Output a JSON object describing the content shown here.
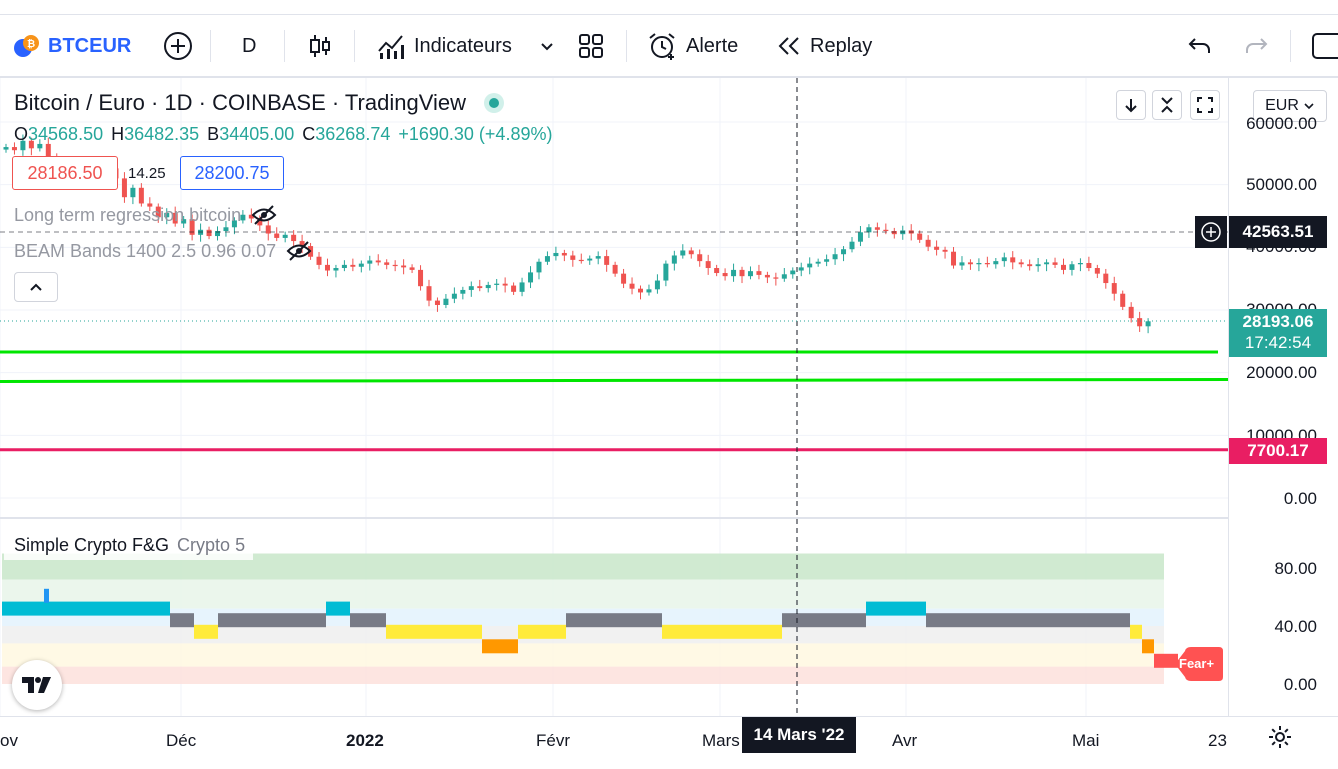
{
  "toolbar": {
    "symbol": "BTCEUR",
    "interval": "D",
    "indicators_label": "Indicateurs",
    "alert_label": "Alerte",
    "replay_label": "Replay"
  },
  "legend": {
    "title": "Bitcoin / Euro · 1D · COINBASE · TradingView",
    "open_label": "O",
    "open": "34568.50",
    "high_label": "H",
    "high": "36482.35",
    "low_label": "B",
    "low": "34405.00",
    "close_label": "C",
    "close": "36268.74",
    "change": "+1690.30 (+4.89%)",
    "sell_price": "28186.50",
    "spread": "14.25",
    "buy_price": "28200.75",
    "indicator_1": "Long term regression bitcoin",
    "indicator_2": "BEAM Bands 1400 2.5 0.96 0.07"
  },
  "currency": "EUR",
  "price_axis": {
    "labels": [
      "60000.00",
      "50000.00",
      "40000.00",
      "30000.00",
      "20000.00",
      "10000.00",
      "0.00"
    ],
    "crosshair_price": "42563.51",
    "last_price": "28193.06",
    "countdown": "17:42:54",
    "low_band_price": "7700.17"
  },
  "sub_pane": {
    "title": "Simple Crypto F&G",
    "params": "Crypto 5",
    "axis_labels": [
      "80.00",
      "40.00",
      "0.00"
    ],
    "badge": "Fear+"
  },
  "time_axis": {
    "labels": [
      "ov",
      "Déc",
      "2022",
      "Févr",
      "Mars",
      "Avr",
      "Mai",
      "23"
    ],
    "crosshair_date": "14 Mars '22"
  },
  "colors": {
    "up": "#26a69a",
    "down": "#ef5350",
    "accent": "#2962ff",
    "band_green": "#00e600",
    "band_red": "#e91e63",
    "fg_blue": "#00bcd4",
    "fg_gray": "#787b86",
    "fg_yellow": "#ffeb3b",
    "fg_orange": "#ff9800",
    "fg_red": "#ff5252"
  },
  "chart_data": {
    "type": "candlestick",
    "title": "Bitcoin / Euro · 1D · COINBASE · TradingView",
    "y_range": [
      0,
      62000
    ],
    "closes": [
      56000,
      55500,
      57000,
      55800,
      56500,
      54500,
      53000,
      50500,
      51500,
      52000,
      50800,
      51200,
      52600,
      51000,
      48000,
      49500,
      47000,
      46500,
      44800,
      45500,
      43800,
      44500,
      42000,
      42800,
      41800,
      42600,
      43200,
      44300,
      45200,
      44600,
      43500,
      42200,
      41500,
      42000,
      41000,
      40200,
      38500,
      37200,
      36300,
      36700,
      37200,
      36900,
      37400,
      37900,
      37600,
      37200,
      37100,
      36800,
      36400,
      33800,
      31500,
      30800,
      31800,
      32600,
      33200,
      33800,
      33500,
      34000,
      34200,
      33900,
      32900,
      34400,
      36000,
      37700,
      38600,
      39100,
      38700,
      38000,
      37900,
      38200,
      38600,
      37200,
      35800,
      34200,
      33400,
      32800,
      33300,
      34700,
      37400,
      38700,
      39500,
      38900,
      37800,
      36700,
      35900,
      35400,
      36400,
      35400,
      36200,
      35600,
      35200,
      35000,
      35700,
      36300,
      36800,
      37400,
      37700,
      38100,
      38900,
      39700,
      40900,
      42400,
      43200,
      42800,
      42600,
      42100,
      42700,
      42200,
      41200,
      40100,
      39600,
      39300,
      37100,
      37600,
      37300,
      37500,
      37300,
      37800,
      38400,
      37600,
      37300,
      37000,
      37300,
      37600,
      37200,
      36400,
      37300,
      37500,
      36700,
      35800,
      34300,
      32600,
      30500,
      28700,
      27400,
      28200
    ],
    "horizontal_bands": [
      {
        "name": "band-upper",
        "value": 23300
      },
      {
        "name": "band-lower",
        "value": 18600
      },
      {
        "name": "band-bottom",
        "value": 7700.17
      }
    ],
    "sub_pane": {
      "type": "step",
      "y_range": [
        0,
        100
      ],
      "zones": [
        90,
        72,
        52,
        40,
        28,
        12,
        0
      ],
      "segments": [
        {
          "start": 0,
          "end": 14,
          "value": 52,
          "color": "#00bcd4"
        },
        {
          "start": 14,
          "end": 16,
          "value": 44,
          "color": "#787b86"
        },
        {
          "start": 16,
          "end": 18,
          "value": 36,
          "color": "#ffeb3b"
        },
        {
          "start": 18,
          "end": 27,
          "value": 44,
          "color": "#787b86"
        },
        {
          "start": 27,
          "end": 29,
          "value": 52,
          "color": "#00bcd4"
        },
        {
          "start": 29,
          "end": 32,
          "value": 44,
          "color": "#787b86"
        },
        {
          "start": 32,
          "end": 40,
          "value": 36,
          "color": "#ffeb3b"
        },
        {
          "start": 40,
          "end": 43,
          "value": 26,
          "color": "#ff9800"
        },
        {
          "start": 43,
          "end": 47,
          "value": 36,
          "color": "#ffeb3b"
        },
        {
          "start": 47,
          "end": 55,
          "value": 44,
          "color": "#787b86"
        },
        {
          "start": 55,
          "end": 65,
          "value": 36,
          "color": "#ffeb3b"
        },
        {
          "start": 65,
          "end": 68,
          "value": 44,
          "color": "#787b86"
        },
        {
          "start": 68,
          "end": 72,
          "value": 44,
          "color": "#787b86"
        },
        {
          "start": 72,
          "end": 77,
          "value": 52,
          "color": "#00bcd4"
        },
        {
          "start": 77,
          "end": 94,
          "value": 44,
          "color": "#787b86"
        },
        {
          "start": 94,
          "end": 95,
          "value": 36,
          "color": "#ffeb3b"
        },
        {
          "start": 95,
          "end": 96,
          "value": 26,
          "color": "#ff9800"
        },
        {
          "start": 96,
          "end": 98,
          "value": 16,
          "color": "#ff5252"
        }
      ]
    }
  }
}
